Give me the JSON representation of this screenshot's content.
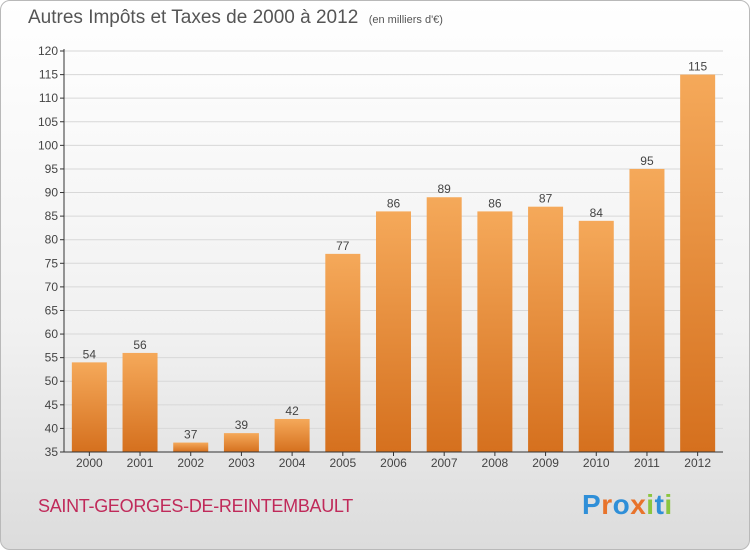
{
  "title": "Autres Impôts et Taxes de 2000 à 2012",
  "subtitle": "(en milliers d'€)",
  "commune": "SAINT-GEORGES-DE-REINTEMBAULT",
  "logo": {
    "letters": [
      "P",
      "r",
      "o",
      "x",
      "i",
      "t",
      "i"
    ],
    "colors": [
      "#2f8fd8",
      "#e8732b",
      "#2f8fd8",
      "#e8732b",
      "#8bc53f",
      "#2f8fd8",
      "#8bc53f"
    ]
  },
  "colors": {
    "bar_light": "#f5a95a",
    "bar_dark": "#d5701e",
    "axis": "#333333",
    "grid": "#d8d8d8"
  },
  "chart_data": {
    "type": "bar",
    "categories": [
      "2000",
      "2001",
      "2002",
      "2003",
      "2004",
      "2005",
      "2006",
      "2007",
      "2008",
      "2009",
      "2010",
      "2011",
      "2012"
    ],
    "values": [
      54,
      56,
      37,
      39,
      42,
      77,
      86,
      89,
      86,
      87,
      84,
      95,
      115
    ],
    "ylim": [
      35,
      120
    ],
    "yticks": [
      35,
      40,
      45,
      50,
      55,
      60,
      65,
      70,
      75,
      80,
      85,
      90,
      95,
      100,
      105,
      110,
      115,
      120
    ],
    "grid": true,
    "value_labels": true
  }
}
